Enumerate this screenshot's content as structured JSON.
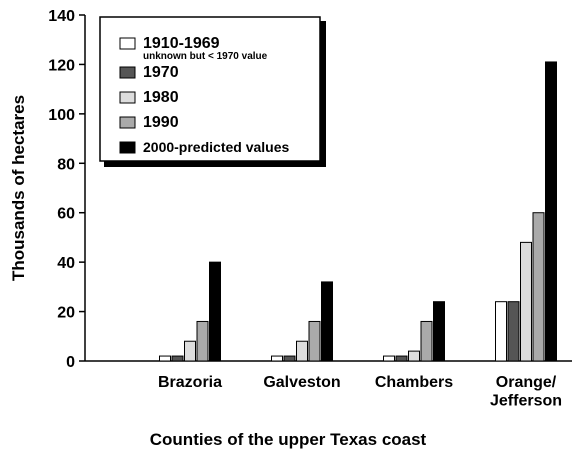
{
  "chart_data": {
    "type": "bar",
    "xlabel": "Counties of the upper Texas coast",
    "ylabel": "Thousands of hectares",
    "categories": [
      "Brazoria",
      "Galveston",
      "Chambers",
      "Orange/\nJefferson"
    ],
    "series": [
      {
        "name": "1910-1969",
        "note": "unknown but < 1970 value",
        "color": "#ffffff",
        "values": [
          2,
          2,
          2,
          24
        ]
      },
      {
        "name": "1970",
        "color": "#555555",
        "values": [
          2,
          2,
          2,
          24
        ]
      },
      {
        "name": "1980",
        "color": "#dddddd",
        "values": [
          8,
          8,
          4,
          48
        ]
      },
      {
        "name": "1990",
        "color": "#aaaaaa",
        "values": [
          16,
          16,
          16,
          60
        ]
      },
      {
        "name": "2000-predicted values",
        "color": "#000000",
        "values": [
          40,
          32,
          24,
          121
        ]
      }
    ],
    "ylim": [
      0,
      140
    ],
    "yticks": [
      0,
      20,
      40,
      60,
      80,
      100,
      120,
      140
    ]
  }
}
